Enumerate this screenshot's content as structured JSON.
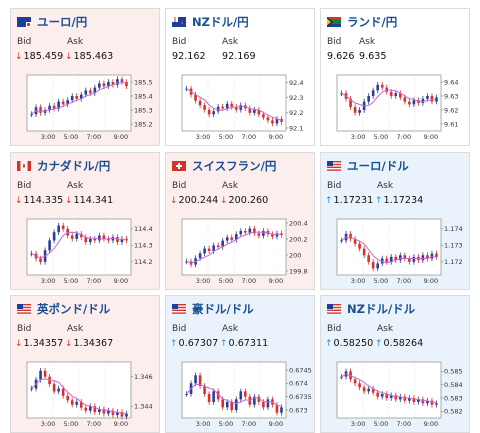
{
  "labels": {
    "bid": "Bid",
    "ask": "Ask"
  },
  "colors": {
    "up_candle": "#2a3d9a",
    "down_candle": "#d9302b",
    "moving_average": "#c66ad6",
    "price_down": "#d0342c",
    "price_up": "#2e8bd6",
    "card_red": "#fdeeee",
    "card_blue": "#eaf3fb"
  },
  "cards": [
    {
      "title": "ユーロ/円",
      "bid": "185.459",
      "ask": "185.463",
      "direction": "down",
      "flag_icon": "eu-flag-icon",
      "chart_data": {
        "type": "candlestick",
        "x_ticks": [
          "3:00",
          "5:00",
          "7:00",
          "9:00"
        ],
        "y_ticks": [
          "185.5",
          "185.4",
          "185.3",
          "185.2"
        ],
        "y_range": [
          185.15,
          185.55
        ],
        "series": [
          185.27,
          185.32,
          185.28,
          185.3,
          185.33,
          185.31,
          185.36,
          185.34,
          185.37,
          185.4,
          185.38,
          185.41,
          185.44,
          185.42,
          185.46,
          185.49,
          185.47,
          185.5,
          185.48,
          185.52,
          185.5,
          185.47
        ]
      }
    },
    {
      "title": "NZドル/円",
      "bid": "92.162",
      "ask": "92.169",
      "direction": "down",
      "flag_icon": "nz-flag-icon",
      "chart_data": {
        "type": "candlestick",
        "x_ticks": [
          "3:00",
          "5:00",
          "7:00",
          "9:00"
        ],
        "y_ticks": [
          "92.4",
          "92.3",
          "92.2",
          "92.1"
        ],
        "y_range": [
          92.08,
          92.45
        ],
        "series": [
          92.36,
          92.32,
          92.28,
          92.25,
          92.22,
          92.19,
          92.21,
          92.24,
          92.23,
          92.26,
          92.24,
          92.22,
          92.25,
          92.23,
          92.2,
          92.22,
          92.19,
          92.17,
          92.15,
          92.13,
          92.16,
          92.14
        ]
      }
    },
    {
      "title": "ランド/円",
      "bid": "9.626",
      "ask": "9.635",
      "direction": "none",
      "flag_icon": "za-flag-icon",
      "chart_data": {
        "type": "candlestick",
        "x_ticks": [
          "3:00",
          "5:00",
          "7:00",
          "9:00"
        ],
        "y_ticks": [
          "9.64",
          "9.63",
          "9.62",
          "9.61"
        ],
        "y_range": [
          9.605,
          9.645
        ],
        "series": [
          9.632,
          9.628,
          9.622,
          9.618,
          9.62,
          9.626,
          9.63,
          9.634,
          9.638,
          9.636,
          9.633,
          9.63,
          9.632,
          9.629,
          9.626,
          9.624,
          9.627,
          9.625,
          9.628,
          9.63,
          9.626,
          9.629
        ]
      }
    },
    {
      "title": "カナダドル/円",
      "bid": "114.335",
      "ask": "114.341",
      "direction": "down",
      "flag_icon": "ca-flag-icon",
      "chart_data": {
        "type": "candlestick",
        "x_ticks": [
          "3:00",
          "5:00",
          "7:00",
          "9:00"
        ],
        "y_ticks": [
          "114.4",
          "114.3",
          "114.2"
        ],
        "y_range": [
          114.12,
          114.46
        ],
        "series": [
          114.25,
          114.22,
          114.2,
          114.27,
          114.33,
          114.38,
          114.42,
          114.4,
          114.36,
          114.34,
          114.37,
          114.35,
          114.32,
          114.34,
          114.33,
          114.36,
          114.34,
          114.33,
          114.35,
          114.32,
          114.34,
          114.33
        ]
      }
    },
    {
      "title": "スイスフラン/円",
      "bid": "200.244",
      "ask": "200.260",
      "direction": "down",
      "flag_icon": "ch-flag-icon",
      "chart_data": {
        "type": "candlestick",
        "x_ticks": [
          "3:00",
          "5:00",
          "7:00",
          "9:00"
        ],
        "y_ticks": [
          "200.4",
          "200.2",
          "200",
          "199.8"
        ],
        "y_range": [
          199.75,
          200.45
        ],
        "series": [
          199.92,
          199.88,
          199.96,
          200.02,
          200.08,
          200.05,
          200.12,
          200.1,
          200.18,
          200.22,
          200.19,
          200.26,
          200.3,
          200.28,
          200.33,
          200.27,
          200.24,
          200.3,
          200.26,
          200.23,
          200.27,
          200.25
        ]
      }
    },
    {
      "title": "ユーロ/ドル",
      "bid": "1.17231",
      "ask": "1.17234",
      "direction": "up",
      "flag_icon": "eu-us-flag-icon",
      "chart_data": {
        "type": "candlestick",
        "x_ticks": [
          "3:00",
          "5:00",
          "7:00",
          "9:00"
        ],
        "y_ticks": [
          "1.174",
          "1.173",
          "1.172"
        ],
        "y_range": [
          1.1712,
          1.1746
        ],
        "series": [
          1.1733,
          1.1737,
          1.1734,
          1.1731,
          1.1728,
          1.1724,
          1.172,
          1.1716,
          1.1719,
          1.1722,
          1.172,
          1.1723,
          1.1721,
          1.1724,
          1.1722,
          1.172,
          1.1723,
          1.1721,
          1.1724,
          1.1722,
          1.1725,
          1.1723
        ]
      }
    },
    {
      "title": "英ポンド/ドル",
      "bid": "1.34357",
      "ask": "1.34367",
      "direction": "down",
      "flag_icon": "gb-us-flag-icon",
      "chart_data": {
        "type": "candlestick",
        "x_ticks": [
          "3:00",
          "5:00",
          "7:00",
          "9:00"
        ],
        "y_ticks": [
          "1.346",
          "1.344"
        ],
        "y_range": [
          1.3432,
          1.347
        ],
        "series": [
          1.3452,
          1.3458,
          1.3464,
          1.346,
          1.3455,
          1.345,
          1.3452,
          1.3447,
          1.3444,
          1.3441,
          1.3443,
          1.3439,
          1.3437,
          1.344,
          1.3436,
          1.3438,
          1.3435,
          1.3437,
          1.3434,
          1.3436,
          1.3433,
          1.3435
        ]
      }
    },
    {
      "title": "豪ドル/ドル",
      "bid": "0.67307",
      "ask": "0.67311",
      "direction": "up",
      "flag_icon": "au-us-flag-icon",
      "chart_data": {
        "type": "candlestick",
        "x_ticks": [
          "3:00",
          "5:00",
          "7:00",
          "9:00"
        ],
        "y_ticks": [
          "0.6745",
          "0.674",
          "0.6735",
          "0.673"
        ],
        "y_range": [
          0.6727,
          0.6748
        ],
        "series": [
          0.6736,
          0.674,
          0.6743,
          0.6739,
          0.6736,
          0.6733,
          0.6737,
          0.6734,
          0.6731,
          0.6733,
          0.673,
          0.6734,
          0.6737,
          0.6735,
          0.6732,
          0.6735,
          0.6733,
          0.6731,
          0.6734,
          0.6732,
          0.6729,
          0.6731
        ]
      }
    },
    {
      "title": "NZドル/ドル",
      "bid": "0.58250",
      "ask": "0.58264",
      "direction": "up",
      "flag_icon": "nz-us-flag-icon",
      "chart_data": {
        "type": "candlestick",
        "x_ticks": [
          "3:00",
          "5:00",
          "7:00",
          "9:00"
        ],
        "y_ticks": [
          "0.585",
          "0.584",
          "0.583",
          "0.582"
        ],
        "y_range": [
          0.5815,
          0.5857
        ],
        "series": [
          0.5846,
          0.585,
          0.5844,
          0.5841,
          0.5838,
          0.5835,
          0.5837,
          0.5834,
          0.5831,
          0.5833,
          0.583,
          0.5832,
          0.5829,
          0.5831,
          0.5828,
          0.583,
          0.5827,
          0.5829,
          0.5826,
          0.5828,
          0.5825,
          0.5826
        ]
      }
    }
  ]
}
